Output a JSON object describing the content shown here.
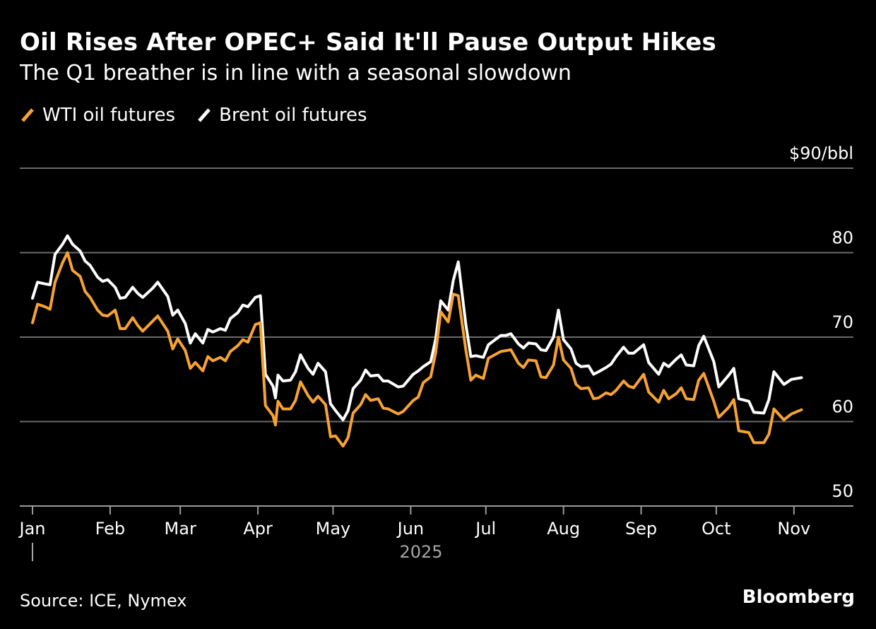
{
  "title": "Oil Rises After OPEC+ Said It'll Pause Output Hikes",
  "subtitle": "The Q1 breather is in line with a seasonal slowdown",
  "source": "Source: ICE, Nymex",
  "brand": "Bloomberg",
  "colors": {
    "background": "#000000",
    "wti": "#f7a234",
    "brent": "#ffffff",
    "grid": "#6b6b6b",
    "muted": "#a6a6a6"
  },
  "chart_data": {
    "type": "line",
    "x_type": "date",
    "xlim": [
      "2025-01-01",
      "2025-11-05"
    ],
    "ylim": [
      50,
      90
    ],
    "y_ticks": [
      50,
      60,
      70,
      80,
      90
    ],
    "y_tick_labels": [
      "50",
      "60",
      "70",
      "80",
      "$90/bbl"
    ],
    "x_ticks": [
      "2025-01-01",
      "2025-02-01",
      "2025-03-01",
      "2025-04-01",
      "2025-05-01",
      "2025-06-01",
      "2025-07-01",
      "2025-08-01",
      "2025-09-01",
      "2025-10-01",
      "2025-11-01"
    ],
    "x_tick_labels": [
      "Jan",
      "Feb",
      "Mar",
      "Apr",
      "May",
      "Jun",
      "Jul",
      "Aug",
      "Sep",
      "Oct",
      "Nov"
    ],
    "x_year_label": "2025",
    "grid": true,
    "legend_position": "top-left",
    "series": [
      {
        "name": "WTI oil futures",
        "color": "#f7a234",
        "points": [
          [
            "2025-01-01",
            71.7
          ],
          [
            "2025-01-03",
            73.9
          ],
          [
            "2025-01-06",
            73.6
          ],
          [
            "2025-01-08",
            73.3
          ],
          [
            "2025-01-10",
            76.5
          ],
          [
            "2025-01-13",
            78.8
          ],
          [
            "2025-01-15",
            80.0
          ],
          [
            "2025-01-17",
            77.9
          ],
          [
            "2025-01-20",
            77.2
          ],
          [
            "2025-01-22",
            75.4
          ],
          [
            "2025-01-24",
            74.7
          ],
          [
            "2025-01-27",
            73.2
          ],
          [
            "2025-01-29",
            72.6
          ],
          [
            "2025-01-31",
            72.5
          ],
          [
            "2025-02-03",
            73.2
          ],
          [
            "2025-02-05",
            71.0
          ],
          [
            "2025-02-07",
            71.0
          ],
          [
            "2025-02-10",
            72.3
          ],
          [
            "2025-02-12",
            71.4
          ],
          [
            "2025-02-14",
            70.7
          ],
          [
            "2025-02-18",
            71.9
          ],
          [
            "2025-02-20",
            72.5
          ],
          [
            "2025-02-24",
            70.7
          ],
          [
            "2025-02-26",
            68.6
          ],
          [
            "2025-02-28",
            69.8
          ],
          [
            "2025-03-03",
            68.4
          ],
          [
            "2025-03-05",
            66.3
          ],
          [
            "2025-03-07",
            67.0
          ],
          [
            "2025-03-10",
            66.0
          ],
          [
            "2025-03-12",
            67.7
          ],
          [
            "2025-03-14",
            67.2
          ],
          [
            "2025-03-17",
            67.6
          ],
          [
            "2025-03-19",
            67.2
          ],
          [
            "2025-03-21",
            68.3
          ],
          [
            "2025-03-24",
            69.0
          ],
          [
            "2025-03-26",
            69.7
          ],
          [
            "2025-03-28",
            69.4
          ],
          [
            "2025-03-31",
            71.5
          ],
          [
            "2025-04-02",
            71.7
          ],
          [
            "2025-04-04",
            61.9
          ],
          [
            "2025-04-07",
            60.7
          ],
          [
            "2025-04-08",
            59.6
          ],
          [
            "2025-04-09",
            62.4
          ],
          [
            "2025-04-11",
            61.5
          ],
          [
            "2025-04-14",
            61.5
          ],
          [
            "2025-04-16",
            62.5
          ],
          [
            "2025-04-18",
            64.7
          ],
          [
            "2025-04-21",
            63.1
          ],
          [
            "2025-04-23",
            62.3
          ],
          [
            "2025-04-25",
            63.0
          ],
          [
            "2025-04-28",
            62.0
          ],
          [
            "2025-04-30",
            58.2
          ],
          [
            "2025-05-02",
            58.3
          ],
          [
            "2025-05-05",
            57.1
          ],
          [
            "2025-05-07",
            58.1
          ],
          [
            "2025-05-09",
            61.0
          ],
          [
            "2025-05-12",
            62.0
          ],
          [
            "2025-05-14",
            63.2
          ],
          [
            "2025-05-16",
            62.5
          ],
          [
            "2025-05-19",
            62.7
          ],
          [
            "2025-05-21",
            61.6
          ],
          [
            "2025-05-23",
            61.5
          ],
          [
            "2025-05-27",
            60.9
          ],
          [
            "2025-05-29",
            61.2
          ],
          [
            "2025-06-02",
            62.5
          ],
          [
            "2025-06-04",
            62.9
          ],
          [
            "2025-06-06",
            64.6
          ],
          [
            "2025-06-09",
            65.3
          ],
          [
            "2025-06-11",
            68.2
          ],
          [
            "2025-06-13",
            73.0
          ],
          [
            "2025-06-16",
            71.8
          ],
          [
            "2025-06-18",
            75.1
          ],
          [
            "2025-06-20",
            74.9
          ],
          [
            "2025-06-23",
            68.5
          ],
          [
            "2025-06-25",
            64.9
          ],
          [
            "2025-06-27",
            65.5
          ],
          [
            "2025-06-30",
            65.1
          ],
          [
            "2025-07-02",
            67.5
          ],
          [
            "2025-07-07",
            68.3
          ],
          [
            "2025-07-09",
            68.4
          ],
          [
            "2025-07-11",
            68.5
          ],
          [
            "2025-07-14",
            66.9
          ],
          [
            "2025-07-16",
            66.4
          ],
          [
            "2025-07-18",
            67.3
          ],
          [
            "2025-07-21",
            67.2
          ],
          [
            "2025-07-23",
            65.3
          ],
          [
            "2025-07-25",
            65.2
          ],
          [
            "2025-07-28",
            66.7
          ],
          [
            "2025-07-30",
            70.0
          ],
          [
            "2025-08-01",
            67.3
          ],
          [
            "2025-08-04",
            66.3
          ],
          [
            "2025-08-06",
            64.4
          ],
          [
            "2025-08-08",
            63.9
          ],
          [
            "2025-08-11",
            64.0
          ],
          [
            "2025-08-13",
            62.7
          ],
          [
            "2025-08-15",
            62.8
          ],
          [
            "2025-08-18",
            63.4
          ],
          [
            "2025-08-20",
            63.2
          ],
          [
            "2025-08-22",
            63.7
          ],
          [
            "2025-08-25",
            64.8
          ],
          [
            "2025-08-27",
            64.2
          ],
          [
            "2025-08-29",
            64.0
          ],
          [
            "2025-09-02",
            65.6
          ],
          [
            "2025-09-04",
            63.5
          ],
          [
            "2025-09-08",
            62.3
          ],
          [
            "2025-09-10",
            63.7
          ],
          [
            "2025-09-12",
            62.7
          ],
          [
            "2025-09-15",
            63.3
          ],
          [
            "2025-09-17",
            64.0
          ],
          [
            "2025-09-19",
            62.7
          ],
          [
            "2025-09-22",
            62.6
          ],
          [
            "2025-09-24",
            64.9
          ],
          [
            "2025-09-26",
            65.7
          ],
          [
            "2025-09-30",
            62.4
          ],
          [
            "2025-10-02",
            60.5
          ],
          [
            "2025-10-06",
            61.7
          ],
          [
            "2025-10-08",
            62.6
          ],
          [
            "2025-10-10",
            58.9
          ],
          [
            "2025-10-14",
            58.7
          ],
          [
            "2025-10-16",
            57.5
          ],
          [
            "2025-10-20",
            57.5
          ],
          [
            "2025-10-22",
            58.5
          ],
          [
            "2025-10-24",
            61.5
          ],
          [
            "2025-10-28",
            60.2
          ],
          [
            "2025-10-31",
            60.9
          ],
          [
            "2025-11-04",
            61.4
          ]
        ]
      },
      {
        "name": "Brent oil futures",
        "color": "#ffffff",
        "points": [
          [
            "2025-01-01",
            74.6
          ],
          [
            "2025-01-03",
            76.5
          ],
          [
            "2025-01-06",
            76.3
          ],
          [
            "2025-01-08",
            76.2
          ],
          [
            "2025-01-10",
            79.8
          ],
          [
            "2025-01-13",
            81.0
          ],
          [
            "2025-01-15",
            82.0
          ],
          [
            "2025-01-17",
            81.0
          ],
          [
            "2025-01-20",
            80.2
          ],
          [
            "2025-01-22",
            79.0
          ],
          [
            "2025-01-24",
            78.5
          ],
          [
            "2025-01-27",
            77.1
          ],
          [
            "2025-01-29",
            76.6
          ],
          [
            "2025-01-31",
            76.8
          ],
          [
            "2025-02-03",
            75.9
          ],
          [
            "2025-02-05",
            74.6
          ],
          [
            "2025-02-07",
            74.7
          ],
          [
            "2025-02-10",
            75.9
          ],
          [
            "2025-02-12",
            75.2
          ],
          [
            "2025-02-14",
            74.7
          ],
          [
            "2025-02-18",
            75.8
          ],
          [
            "2025-02-20",
            76.5
          ],
          [
            "2025-02-24",
            74.8
          ],
          [
            "2025-02-26",
            72.6
          ],
          [
            "2025-02-28",
            73.2
          ],
          [
            "2025-03-03",
            71.6
          ],
          [
            "2025-03-05",
            69.3
          ],
          [
            "2025-03-07",
            70.4
          ],
          [
            "2025-03-10",
            69.3
          ],
          [
            "2025-03-12",
            70.9
          ],
          [
            "2025-03-14",
            70.6
          ],
          [
            "2025-03-17",
            71.0
          ],
          [
            "2025-03-19",
            70.8
          ],
          [
            "2025-03-21",
            72.2
          ],
          [
            "2025-03-24",
            72.9
          ],
          [
            "2025-03-26",
            73.8
          ],
          [
            "2025-03-28",
            73.6
          ],
          [
            "2025-03-31",
            74.7
          ],
          [
            "2025-04-02",
            74.9
          ],
          [
            "2025-04-04",
            65.6
          ],
          [
            "2025-04-07",
            64.2
          ],
          [
            "2025-04-08",
            62.8
          ],
          [
            "2025-04-09",
            65.5
          ],
          [
            "2025-04-11",
            64.8
          ],
          [
            "2025-04-14",
            64.9
          ],
          [
            "2025-04-16",
            65.9
          ],
          [
            "2025-04-18",
            67.9
          ],
          [
            "2025-04-21",
            66.3
          ],
          [
            "2025-04-23",
            65.6
          ],
          [
            "2025-04-25",
            66.9
          ],
          [
            "2025-04-28",
            65.9
          ],
          [
            "2025-04-30",
            62.1
          ],
          [
            "2025-05-02",
            61.3
          ],
          [
            "2025-05-05",
            60.2
          ],
          [
            "2025-05-07",
            61.3
          ],
          [
            "2025-05-09",
            63.9
          ],
          [
            "2025-05-12",
            64.9
          ],
          [
            "2025-05-14",
            66.1
          ],
          [
            "2025-05-16",
            65.4
          ],
          [
            "2025-05-19",
            65.5
          ],
          [
            "2025-05-21",
            64.8
          ],
          [
            "2025-05-23",
            64.8
          ],
          [
            "2025-05-27",
            64.1
          ],
          [
            "2025-05-29",
            64.2
          ],
          [
            "2025-06-02",
            65.6
          ],
          [
            "2025-06-04",
            66.0
          ],
          [
            "2025-06-06",
            66.5
          ],
          [
            "2025-06-09",
            67.1
          ],
          [
            "2025-06-11",
            69.8
          ],
          [
            "2025-06-13",
            74.3
          ],
          [
            "2025-06-16",
            73.2
          ],
          [
            "2025-06-18",
            76.7
          ],
          [
            "2025-06-20",
            78.9
          ],
          [
            "2025-06-23",
            71.5
          ],
          [
            "2025-06-25",
            67.7
          ],
          [
            "2025-06-27",
            67.8
          ],
          [
            "2025-06-30",
            67.6
          ],
          [
            "2025-07-02",
            69.1
          ],
          [
            "2025-07-07",
            70.2
          ],
          [
            "2025-07-09",
            70.2
          ],
          [
            "2025-07-11",
            70.4
          ],
          [
            "2025-07-14",
            69.2
          ],
          [
            "2025-07-16",
            68.7
          ],
          [
            "2025-07-18",
            69.3
          ],
          [
            "2025-07-21",
            69.2
          ],
          [
            "2025-07-23",
            68.5
          ],
          [
            "2025-07-25",
            68.4
          ],
          [
            "2025-07-28",
            70.0
          ],
          [
            "2025-07-30",
            73.2
          ],
          [
            "2025-08-01",
            69.7
          ],
          [
            "2025-08-04",
            68.6
          ],
          [
            "2025-08-06",
            66.9
          ],
          [
            "2025-08-08",
            66.5
          ],
          [
            "2025-08-11",
            66.6
          ],
          [
            "2025-08-13",
            65.6
          ],
          [
            "2025-08-15",
            65.9
          ],
          [
            "2025-08-18",
            66.4
          ],
          [
            "2025-08-20",
            66.8
          ],
          [
            "2025-08-22",
            67.7
          ],
          [
            "2025-08-25",
            68.8
          ],
          [
            "2025-08-27",
            68.1
          ],
          [
            "2025-08-29",
            68.1
          ],
          [
            "2025-09-02",
            69.1
          ],
          [
            "2025-09-04",
            67.0
          ],
          [
            "2025-09-08",
            65.6
          ],
          [
            "2025-09-10",
            66.9
          ],
          [
            "2025-09-12",
            66.5
          ],
          [
            "2025-09-15",
            67.4
          ],
          [
            "2025-09-17",
            67.9
          ],
          [
            "2025-09-19",
            66.7
          ],
          [
            "2025-09-22",
            66.6
          ],
          [
            "2025-09-24",
            69.0
          ],
          [
            "2025-09-26",
            70.1
          ],
          [
            "2025-09-30",
            67.1
          ],
          [
            "2025-10-02",
            64.1
          ],
          [
            "2025-10-06",
            65.5
          ],
          [
            "2025-10-08",
            66.3
          ],
          [
            "2025-10-10",
            62.7
          ],
          [
            "2025-10-14",
            62.4
          ],
          [
            "2025-10-16",
            61.1
          ],
          [
            "2025-10-20",
            61.0
          ],
          [
            "2025-10-22",
            62.6
          ],
          [
            "2025-10-24",
            65.9
          ],
          [
            "2025-10-28",
            64.4
          ],
          [
            "2025-10-31",
            65.0
          ],
          [
            "2025-11-04",
            65.2
          ]
        ]
      }
    ]
  }
}
